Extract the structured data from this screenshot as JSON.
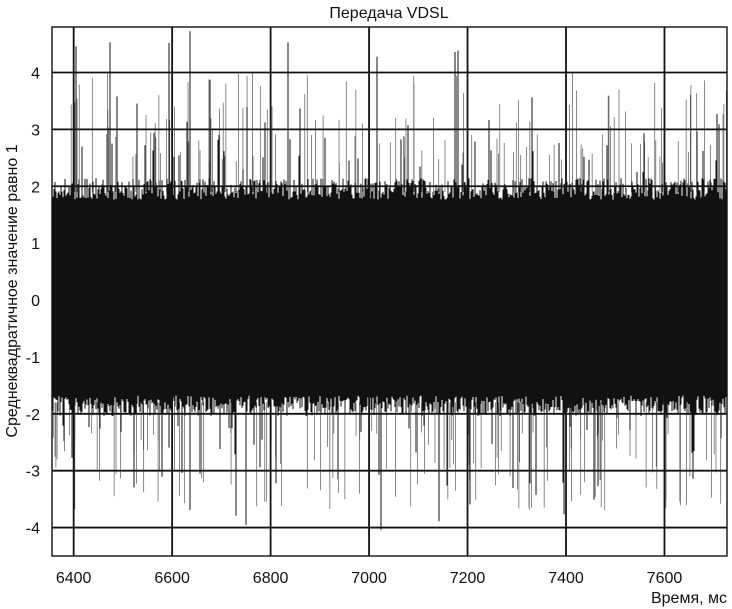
{
  "chart_data": {
    "type": "line",
    "title": "Передача VDSL",
    "xlabel": "Время, мс",
    "ylabel": "Среднеквадратичное значение равно 1",
    "xlim": [
      6356,
      7727
    ],
    "ylim": [
      -4.5,
      4.8
    ],
    "xticks": [
      6400,
      6600,
      6800,
      7000,
      7200,
      7400,
      7600
    ],
    "yticks": [
      -4,
      -3,
      -2,
      -1,
      0,
      1,
      2,
      3,
      4
    ],
    "xtick_labels": [
      "6400",
      "6600",
      "6800",
      "7000",
      "7200",
      "7400",
      "7600"
    ],
    "ytick_labels": [
      "-4",
      "-3",
      "-2",
      "-1",
      "0",
      "1",
      "2",
      "3",
      "4"
    ],
    "grid": true,
    "series_color": "#111111",
    "series": [
      {
        "x_start": 6356,
        "x_end": 7727,
        "rms": 1.0,
        "envelope": {
          "upper_typical": 2.1,
          "lower_typical": -2.0,
          "max": 4.8,
          "min": -4.1
        }
      }
    ]
  }
}
